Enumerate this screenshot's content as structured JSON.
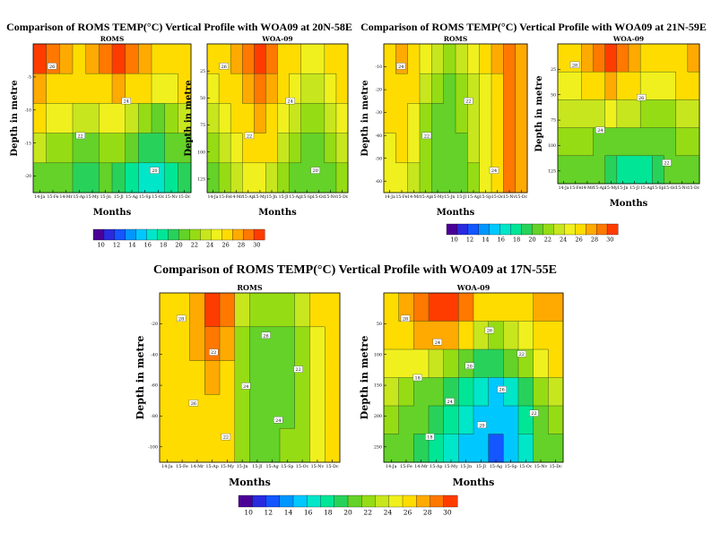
{
  "chart_data": [
    {
      "type": "heatmap",
      "title": "Comparison of ROMS TEMP(°C) Vertical Profile with WOA09 at 20N-58E",
      "panels": [
        {
          "title": "ROMS",
          "xlabel": "Months",
          "ylabel": "Depth in metre",
          "yticks": [
            "-5",
            "-10",
            "-15",
            "-20"
          ],
          "xticks": [
            "14-Ja",
            "15-Fe",
            "14-Mr",
            "15-Ap",
            "15-My",
            "15-Jn",
            "15-Jl",
            "15-Ag",
            "15-Sp",
            "15-Oc",
            "15-Nv",
            "15-Dc"
          ],
          "contour_labels": [
            "26",
            "24",
            "22",
            "20"
          ],
          "z": [
            [
              29,
              28,
              27,
              26,
              27,
              28,
              29,
              28,
              27,
              26,
              25,
              26
            ],
            [
              27,
              26,
              26,
              25,
              25,
              26,
              27,
              26,
              25,
              24,
              24,
              25
            ],
            [
              25,
              24,
              24,
              23,
              23,
              24,
              24,
              23,
              22,
              21,
              22,
              23
            ],
            [
              23,
              22,
              22,
              21,
              21,
              22,
              22,
              20,
              19,
              19,
              20,
              21
            ],
            [
              21,
              20,
              20,
              19,
              19,
              20,
              19,
              18,
              17,
              17,
              18,
              19
            ]
          ]
        },
        {
          "title": "WOA-09",
          "xlabel": "Months",
          "ylabel": "Depth in metre",
          "yticks": [
            "25",
            "50",
            "75",
            "100",
            "125"
          ],
          "xticks": [
            "14-Ja",
            "15-Fe",
            "14-Mr",
            "15-Ap",
            "15-My",
            "15-Jn",
            "15-Jl",
            "15-Ag",
            "15-Sp",
            "15-Oc",
            "15-Nv",
            "15-Dc"
          ],
          "contour_labels": [
            "26",
            "24",
            "22",
            "20"
          ],
          "z": [
            [
              25,
              26,
              27,
              28,
              29,
              28,
              26,
              25,
              24,
              24,
              25,
              26
            ],
            [
              24,
              25,
              26,
              27,
              28,
              27,
              25,
              24,
              23,
              23,
              24,
              25
            ],
            [
              23,
              24,
              25,
              26,
              27,
              26,
              24,
              23,
              22,
              22,
              23,
              24
            ],
            [
              22,
              23,
              24,
              25,
              26,
              25,
              23,
              22,
              21,
              21,
              22,
              23
            ],
            [
              21,
              22,
              23,
              24,
              24,
              23,
              22,
              21,
              20,
              20,
              21,
              22
            ]
          ]
        }
      ]
    },
    {
      "type": "heatmap",
      "title": "Comparison of ROMS TEMP(°C) Vertical Profile with WOA09 at 21N-59E",
      "panels": [
        {
          "title": "ROMS",
          "xlabel": "Months",
          "ylabel": "Depth in metre",
          "yticks": [
            "-10",
            "-20",
            "-30",
            "-40",
            "-50",
            "-60"
          ],
          "xticks": [
            "14-Ja",
            "15-Fe",
            "14-Mr",
            "15-Ap",
            "15-My",
            "15-Jn",
            "15-Jl",
            "15-Ag",
            "15-Sp",
            "15-Oc",
            "15-Nv",
            "15-Dc"
          ],
          "contour_labels": [
            "24",
            "22",
            "22",
            "24"
          ],
          "z": [
            [
              26,
              27,
              26,
              24,
              23,
              22,
              23,
              24,
              25,
              27,
              28,
              27
            ],
            [
              25,
              26,
              25,
              23,
              22,
              21,
              22,
              23,
              24,
              26,
              28,
              27
            ],
            [
              25,
              25,
              24,
              22,
              21,
              21,
              22,
              23,
              24,
              26,
              28,
              27
            ],
            [
              24,
              25,
              24,
              22,
              21,
              20,
              21,
              23,
              24,
              26,
              28,
              27
            ],
            [
              24,
              24,
              23,
              22,
              21,
              20,
              21,
              22,
              24,
              26,
              28,
              27
            ]
          ]
        },
        {
          "title": "WOA-09",
          "xlabel": "Months",
          "ylabel": "Depth in metre",
          "yticks": [
            "25",
            "50",
            "75",
            "100",
            "125"
          ],
          "xticks": [
            "14-Ja",
            "15-Fe",
            "14-Mr",
            "15-Ap",
            "15-My",
            "15-Jn",
            "15-Jl",
            "15-Ag",
            "15-Sp",
            "15-Oc",
            "15-Nv",
            "15-Dc"
          ],
          "contour_labels": [
            "28",
            "26",
            "24",
            "22"
          ],
          "z": [
            [
              25,
              26,
              27,
              28,
              29,
              28,
              27,
              26,
              25,
              25,
              26,
              27
            ],
            [
              24,
              24,
              25,
              26,
              27,
              26,
              25,
              24,
              24,
              24,
              25,
              25
            ],
            [
              23,
              23,
              23,
              23,
              24,
              23,
              23,
              22,
              22,
              22,
              23,
              23
            ],
            [
              22,
              22,
              22,
              21,
              21,
              20,
              20,
              20,
              21,
              21,
              22,
              22
            ],
            [
              21,
              21,
              20,
              20,
              19,
              18,
              18,
              18,
              19,
              20,
              21,
              21
            ]
          ]
        }
      ]
    },
    {
      "type": "heatmap",
      "title": "Comparison of ROMS TEMP(°C) Vertical Profile with WOA09 at 17N-55E",
      "panels": [
        {
          "title": "ROMS",
          "xlabel": "Months",
          "ylabel": "Depth in metre",
          "yticks": [
            "-20",
            "-40",
            "-60",
            "-80",
            "-100"
          ],
          "xticks": [
            "14-Ja",
            "15-Fe",
            "14-Mr",
            "15-Ap",
            "15-My",
            "15-Jn",
            "15-Jl",
            "15-Ag",
            "15-Sp",
            "15-Oc",
            "15-Nv",
            "15-Dc"
          ],
          "contour_labels": [
            "28",
            "26",
            "22",
            "22",
            "24",
            "26",
            "24",
            "22"
          ],
          "z": [
            [
              26,
              26,
              27,
              29,
              28,
              23,
              22,
              22,
              22,
              23,
              25,
              26
            ],
            [
              25,
              26,
              27,
              28,
              27,
              22,
              21,
              21,
              21,
              22,
              24,
              26
            ],
            [
              25,
              25,
              26,
              27,
              26,
              22,
              21,
              21,
              21,
              22,
              24,
              26
            ],
            [
              25,
              25,
              26,
              26,
              25,
              22,
              21,
              21,
              21,
              22,
              24,
              26
            ],
            [
              25,
              25,
              25,
              26,
              25,
              22,
              21,
              21,
              22,
              22,
              24,
              26
            ]
          ]
        },
        {
          "title": "WOA-09",
          "xlabel": "Months",
          "ylabel": "Depth in metre",
          "yticks": [
            "50",
            "100",
            "150",
            "200",
            "250"
          ],
          "xticks": [
            "14-Ja",
            "15-Fe",
            "14-Mr",
            "15-Ap",
            "15-My",
            "15-Jn",
            "15-Jl",
            "15-Ag",
            "15-Sp",
            "15-Oc",
            "15-Nv",
            "15-Dc"
          ],
          "contour_labels": [
            "28",
            "26",
            "24",
            "22",
            "20",
            "18",
            "26",
            "24",
            "22",
            "20",
            "18"
          ],
          "z": [
            [
              26,
              27,
              28,
              29,
              30,
              28,
              26,
              25,
              25,
              26,
              27,
              27
            ],
            [
              25,
              26,
              27,
              27,
              27,
              25,
              23,
              22,
              23,
              24,
              26,
              26
            ],
            [
              24,
              24,
              24,
              23,
              22,
              20,
              19,
              19,
              20,
              22,
              24,
              25
            ],
            [
              23,
              22,
              21,
              20,
              19,
              18,
              17,
              16,
              17,
              19,
              22,
              23
            ],
            [
              22,
              21,
              20,
              19,
              18,
              17,
              16,
              15,
              16,
              18,
              21,
              22
            ],
            [
              21,
              20,
              19,
              18,
              17,
              16,
              15,
              13,
              15,
              17,
              20,
              21
            ]
          ]
        }
      ]
    }
  ],
  "colorbar": {
    "labels": [
      "10",
      "12",
      "14",
      "16",
      "18",
      "20",
      "22",
      "24",
      "26",
      "28",
      "30"
    ],
    "colors": [
      "#4b0096",
      "#2a2adf",
      "#1456ff",
      "#0096ff",
      "#00c8ff",
      "#00e6c8",
      "#00e696",
      "#28d25a",
      "#64d228",
      "#96dc14",
      "#c8e61e",
      "#f0f01e",
      "#ffdc00",
      "#ffaa00",
      "#ff7800",
      "#ff3c00"
    ]
  }
}
